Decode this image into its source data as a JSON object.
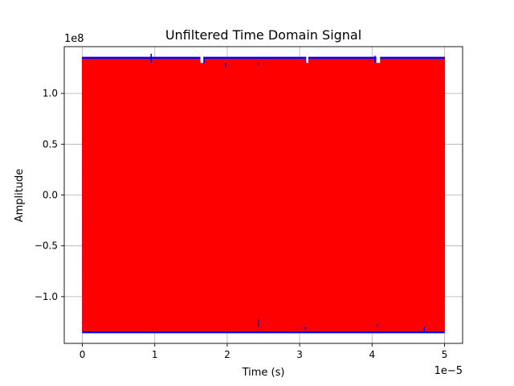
{
  "chart_data": {
    "type": "line",
    "title": "Unfiltered Time Domain Signal",
    "xlabel": "Time (s)",
    "ylabel": "Amplitude",
    "x_offset_label": "1e−5",
    "y_offset_label": "1e8",
    "x_ticks": [
      0,
      1,
      2,
      3,
      4,
      5
    ],
    "x_tick_labels": [
      "0",
      "1",
      "2",
      "3",
      "4",
      "5"
    ],
    "y_ticks": [
      -1.0,
      -0.5,
      0.0,
      0.5,
      1.0
    ],
    "y_tick_labels": [
      "−1.0",
      "−0.5",
      "0.0",
      "0.5",
      "1.0"
    ],
    "xlim": [
      -0.25,
      5.25
    ],
    "ylim": [
      -1.46,
      1.46
    ],
    "grid": true,
    "x_range": [
      0,
      5
    ],
    "series": [
      {
        "color": "#0000ff",
        "amplitude": 1.36,
        "description_kind": "dense-oscillation"
      },
      {
        "color": "#ff0000",
        "amplitude": 1.34,
        "description_kind": "dense-oscillation"
      }
    ],
    "spikes": [
      {
        "x": 0.95,
        "y": 1.39
      },
      {
        "x": 1.68,
        "y": 1.36
      },
      {
        "x": 1.98,
        "y": 1.26
      },
      {
        "x": 2.43,
        "y": 1.28
      },
      {
        "x": 2.43,
        "y": -1.22
      },
      {
        "x": 3.08,
        "y": -1.32
      },
      {
        "x": 3.09,
        "y": 1.36
      },
      {
        "x": 4.04,
        "y": 1.37
      },
      {
        "x": 4.07,
        "y": -1.27
      },
      {
        "x": 4.72,
        "y": -1.35
      }
    ],
    "gaps": [
      {
        "x": 1.63,
        "width": 0.04
      },
      {
        "x": 3.09,
        "width": 0.03
      },
      {
        "x": 4.06,
        "width": 0.05
      }
    ]
  }
}
